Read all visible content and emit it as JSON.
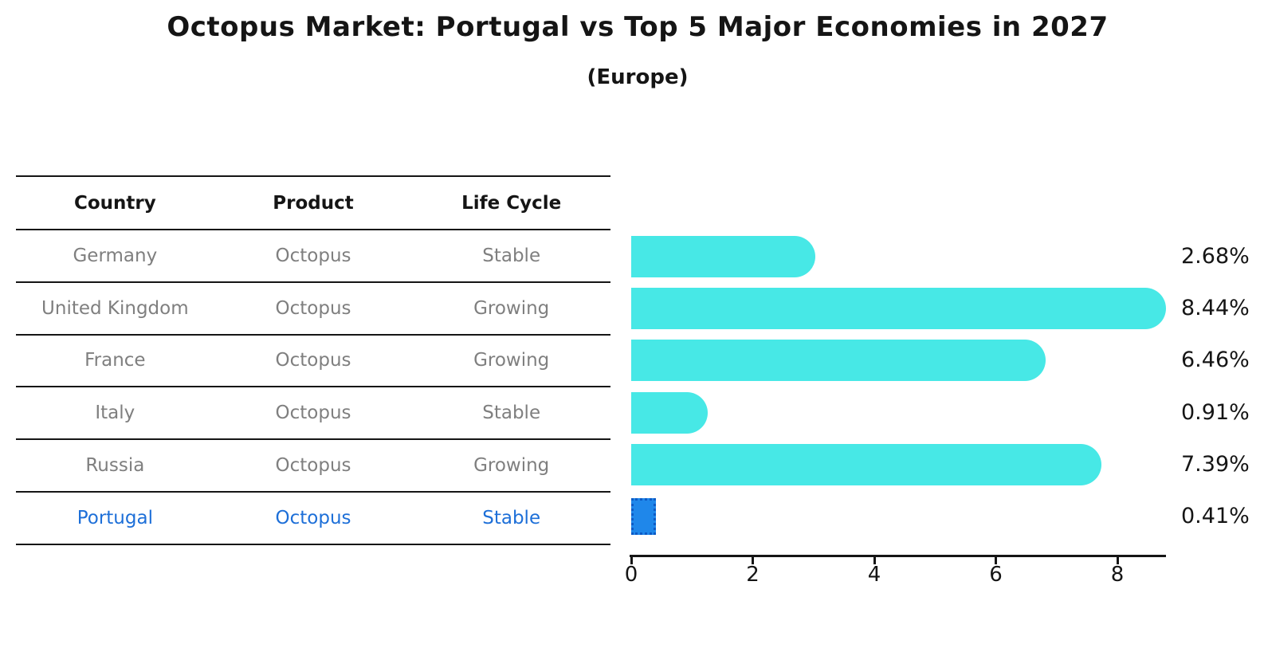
{
  "chart_data": {
    "type": "bar",
    "orientation": "horizontal",
    "title": "Octopus Market: Portugal vs Top 5 Major Economies in 2027",
    "subtitle": "(Europe)",
    "categories": [
      "Germany",
      "United Kingdom",
      "France",
      "Italy",
      "Russia",
      "Portugal"
    ],
    "values": [
      2.68,
      8.44,
      6.46,
      0.91,
      7.39,
      0.41
    ],
    "value_labels": [
      "2.68%",
      "8.44%",
      "6.46%",
      "0.91%",
      "7.39%",
      "0.41%"
    ],
    "xlabel": "",
    "ylabel": "",
    "xlim": [
      0,
      8.8
    ],
    "xticks": [
      0,
      2,
      4,
      6,
      8
    ],
    "grid": false,
    "legend": "none",
    "highlight_category": "Portugal",
    "colors": {
      "bar": "#47E8E6",
      "highlight_bar": "#1F87EA",
      "highlight_bar_border": "#0D5BC6",
      "highlight_text": "#1D6FD8",
      "text_muted": "#7F7F7F",
      "axis": "#151515"
    }
  },
  "table": {
    "headers": [
      "Country",
      "Product",
      "Life Cycle"
    ],
    "rows": [
      {
        "country": "Germany",
        "product": "Octopus",
        "life_cycle": "Stable",
        "highlighted": false
      },
      {
        "country": "United Kingdom",
        "product": "Octopus",
        "life_cycle": "Growing",
        "highlighted": false
      },
      {
        "country": "France",
        "product": "Octopus",
        "life_cycle": "Growing",
        "highlighted": false
      },
      {
        "country": "Italy",
        "product": "Octopus",
        "life_cycle": "Stable",
        "highlighted": false
      },
      {
        "country": "Russia",
        "product": "Octopus",
        "life_cycle": "Growing",
        "highlighted": false
      },
      {
        "country": "Portugal",
        "product": "Octopus",
        "life_cycle": "Stable",
        "highlighted": true
      }
    ]
  }
}
